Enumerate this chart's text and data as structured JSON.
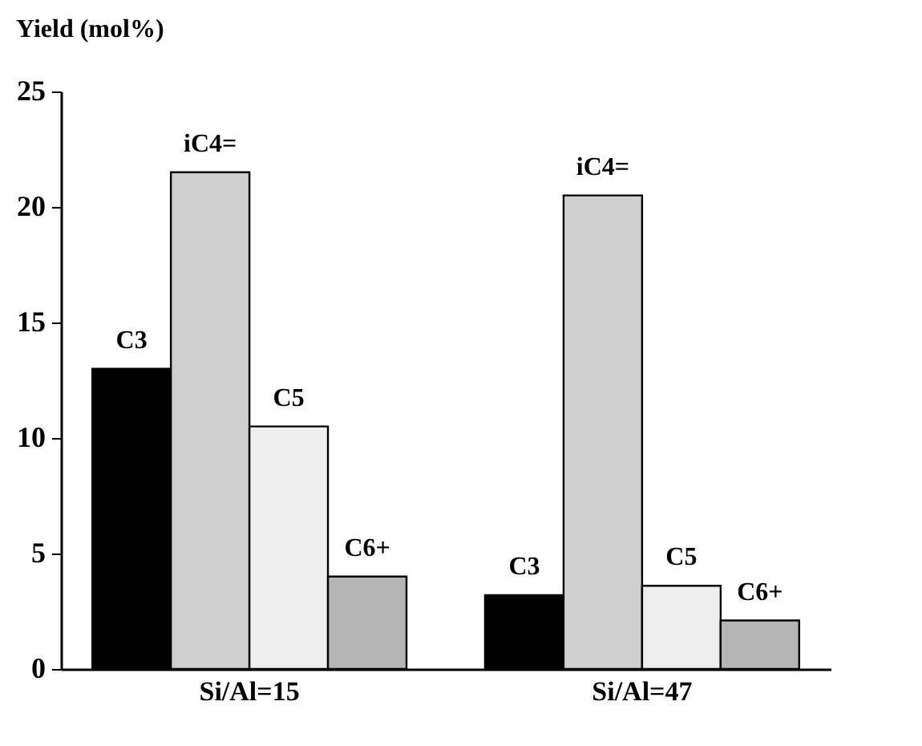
{
  "chart_data": {
    "type": "bar",
    "ylabel": "Yield (mol%)",
    "categories": [
      "Si/Al=15",
      "Si/Al=47"
    ],
    "series": [
      {
        "name": "C3",
        "color": "#000000",
        "values": [
          13.0,
          3.2
        ]
      },
      {
        "name": "iC4=",
        "color": "#cfcfcf",
        "values": [
          21.5,
          20.5
        ]
      },
      {
        "name": "C5",
        "color": "#eeeeee",
        "values": [
          10.5,
          3.6
        ]
      },
      {
        "name": "C6+",
        "color": "#b5b5b5",
        "values": [
          4.0,
          2.1
        ]
      }
    ],
    "ylim": [
      0,
      25
    ],
    "yticks": [
      0,
      5,
      10,
      15,
      20,
      25
    ],
    "grid": false,
    "legend": false
  }
}
